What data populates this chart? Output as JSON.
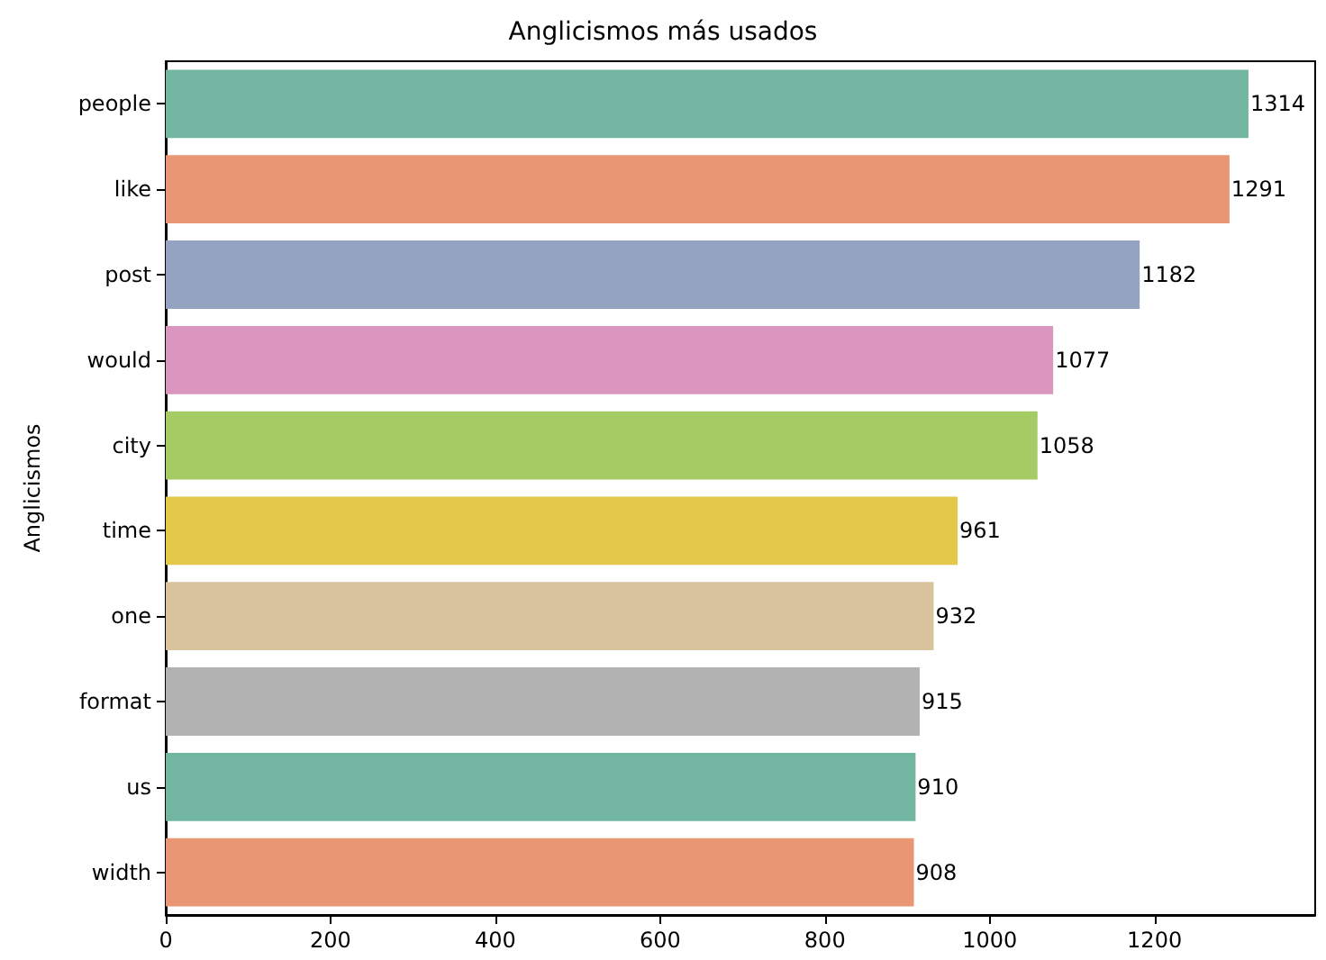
{
  "chart_data": {
    "type": "bar",
    "orientation": "horizontal",
    "title": "Anglicismos más usados",
    "ylabel": "Anglicismos",
    "categories": [
      "people",
      "like",
      "post",
      "would",
      "city",
      "time",
      "one",
      "format",
      "us",
      "width"
    ],
    "values": [
      1314,
      1291,
      1182,
      1077,
      1058,
      961,
      932,
      915,
      910,
      908
    ],
    "colors": [
      "#72b6a1",
      "#e99675",
      "#95a3c3",
      "#db96c0",
      "#a4cb64",
      "#e3c84a",
      "#d9c39c",
      "#b2b2b2",
      "#72b6a1",
      "#e99675"
    ],
    "xlim": [
      0,
      1395
    ],
    "xticks": [
      0,
      200,
      400,
      600,
      800,
      1000,
      1200
    ],
    "data_labels": true,
    "grid": false
  }
}
